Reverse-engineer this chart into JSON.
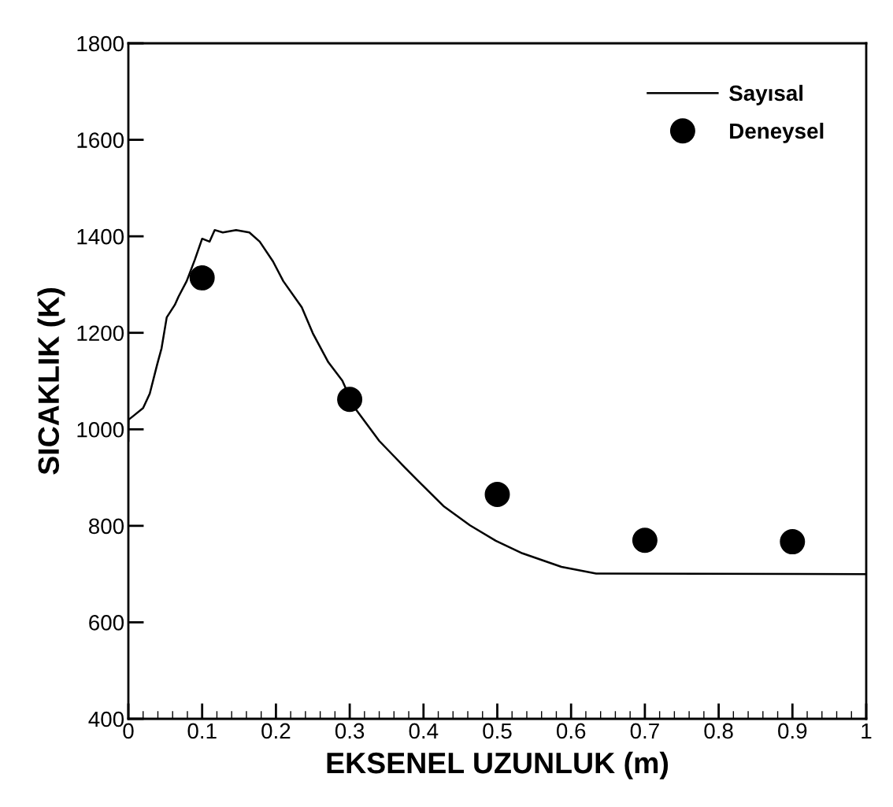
{
  "chart_data": {
    "type": "line",
    "xlabel": "EKSENEL UZUNLUK (m)",
    "ylabel": "SICAKLIK (K)",
    "xlim": [
      0,
      1
    ],
    "ylim": [
      400,
      1800
    ],
    "xticks": [
      0,
      0.1,
      0.2,
      0.3,
      0.4,
      0.5,
      0.6,
      0.7,
      0.8,
      0.9,
      1
    ],
    "yticks": [
      400,
      600,
      800,
      1000,
      1200,
      1400,
      1600,
      1800
    ],
    "grid": false,
    "legend": "top right",
    "series": [
      {
        "name": "Sayısal",
        "color": "#000000",
        "line_style": "solid",
        "marker": "none",
        "x": [
          0,
          0.0003,
          0.007,
          0.02,
          0.029,
          0.039,
          0.045,
          0.052,
          0.063,
          0.068,
          0.079,
          0.09,
          0.1,
          0.11,
          0.117,
          0.128,
          0.146,
          0.164,
          0.178,
          0.196,
          0.21,
          0.235,
          0.25,
          0.271,
          0.29,
          0.306,
          0.34,
          0.374,
          0.392,
          0.427,
          0.463,
          0.498,
          0.534,
          0.587,
          0.634,
          1.0
        ],
        "values": [
          976,
          1020,
          1028,
          1044,
          1074,
          1134,
          1168,
          1232,
          1258,
          1275,
          1307,
          1351,
          1395,
          1389,
          1413,
          1408,
          1413,
          1408,
          1389,
          1348,
          1307,
          1253,
          1199,
          1139,
          1101,
          1046,
          976,
          922,
          894,
          841,
          801,
          769,
          743,
          715,
          701,
          700
        ]
      },
      {
        "name": "Deneysel",
        "type": "scatter",
        "color": "#000000",
        "marker": "circle",
        "x": [
          0.1,
          0.3,
          0.5,
          0.7,
          0.9
        ],
        "values": [
          1314,
          1062,
          865,
          770,
          767
        ]
      }
    ]
  }
}
